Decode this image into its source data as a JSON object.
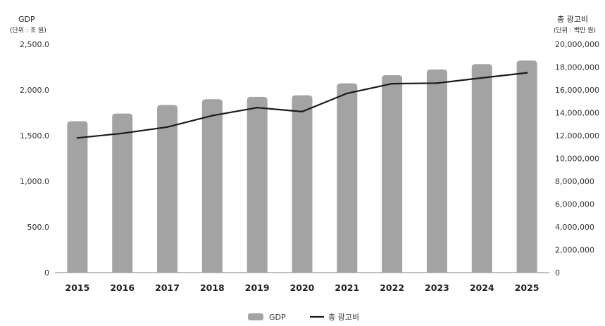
{
  "chart_data": {
    "type": "bar",
    "categories": [
      "2015",
      "2016",
      "2017",
      "2018",
      "2019",
      "2020",
      "2021",
      "2022",
      "2023",
      "2024",
      "2025"
    ],
    "series": [
      {
        "name": "GDP",
        "type": "bar",
        "axis": "left",
        "color": "#a3a3a3",
        "values": [
          1658,
          1741,
          1836,
          1898,
          1924,
          1941,
          2072,
          2162,
          2224,
          2283,
          2322
        ]
      },
      {
        "name": "총 광고비",
        "type": "line",
        "axis": "right",
        "color": "#1a1a1a",
        "values": [
          11800000,
          12200000,
          12750000,
          13750000,
          14450000,
          14100000,
          15700000,
          16550000,
          16600000,
          17050000,
          17500000
        ]
      }
    ],
    "y_left": {
      "title": "GDP",
      "unit": "(단위 : 조 원)",
      "range": [
        0,
        2500
      ],
      "ticks": [
        "0",
        "500.0",
        "1,000.0",
        "1,500.0",
        "2,000.0",
        "2,500.0"
      ]
    },
    "y_right": {
      "title": "총 광고비",
      "unit": "(단위 : 백만 원)",
      "range": [
        0,
        20000000
      ],
      "ticks": [
        "0",
        "2,000,000",
        "4,000,000",
        "6,000,000",
        "8,000,000",
        "10,000,000",
        "12,000,000",
        "14,000,000",
        "16,000,000",
        "18,000,000",
        "20,000,000"
      ]
    },
    "grid": false,
    "legend_position": "bottom-center"
  }
}
